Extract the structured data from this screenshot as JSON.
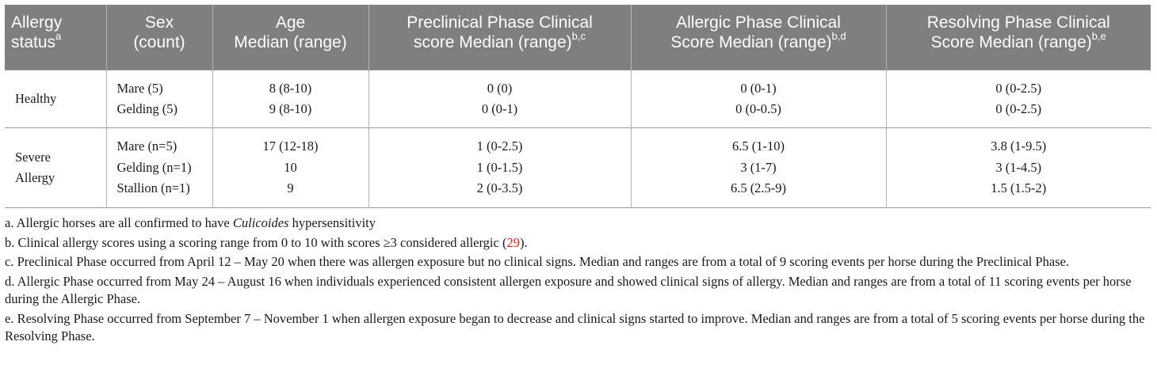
{
  "table": {
    "headers": [
      {
        "text": "Allergy status",
        "sup": "a"
      },
      {
        "text": "Sex (count)",
        "sup": ""
      },
      {
        "text": "Age Median (range)",
        "sup": ""
      },
      {
        "text": "Preclinical Phase Clinical score Median (range)",
        "sup": "b,c"
      },
      {
        "text": "Allergic Phase Clinical Score Median (range)",
        "sup": "b,d"
      },
      {
        "text": "Resolving Phase Clinical Score Median (range)",
        "sup": "b,e"
      }
    ],
    "header_lines": [
      [
        "Allergy",
        "status"
      ],
      [
        "Sex",
        "(count)"
      ],
      [
        "Age",
        "Median (range)"
      ],
      [
        "Preclinical Phase Clinical",
        "score Median (range)"
      ],
      [
        "Allergic Phase Clinical",
        "Score Median (range)"
      ],
      [
        "Resolving Phase Clinical",
        "Score Median (range)"
      ]
    ],
    "groups": [
      {
        "status_lines": [
          "Healthy"
        ],
        "rows": [
          {
            "sex": "Mare (5)",
            "age": "8 (8-10)",
            "preclinical": "0 (0)",
            "allergic": "0 (0-1)",
            "resolving": "0 (0-2.5)"
          },
          {
            "sex": "Gelding (5)",
            "age": "9 (8-10)",
            "preclinical": "0 (0-1)",
            "allergic": "0 (0-0.5)",
            "resolving": "0 (0-2.5)"
          }
        ]
      },
      {
        "status_lines": [
          "Severe",
          "Allergy"
        ],
        "rows": [
          {
            "sex": "Mare (n=5)",
            "age": "17 (12-18)",
            "preclinical": "1 (0-2.5)",
            "allergic": "6.5 (1-10)",
            "resolving": "3.8 (1-9.5)"
          },
          {
            "sex": "Gelding (n=1)",
            "age": "10",
            "preclinical": "1 (0-1.5)",
            "allergic": "3 (1-7)",
            "resolving": "3 (1-4.5)"
          },
          {
            "sex": "Stallion (n=1)",
            "age": "9",
            "preclinical": "2 (0-3.5)",
            "allergic": "6.5 (2.5-9)",
            "resolving": "1.5 (1.5-2)"
          }
        ]
      }
    ]
  },
  "footnotes": {
    "a": {
      "prefix": "a. Allergic horses are all confirmed to have ",
      "italic": "Culicoides",
      "suffix": " hypersensitivity"
    },
    "b": {
      "prefix": "b. Clinical allergy scores using a scoring range from 0 to 10 with scores ≥3 considered allergic (",
      "ref": "29",
      "suffix": ")."
    },
    "c": "c. Preclinical Phase occurred from April 12 – May 20 when there was allergen exposure but no clinical signs. Median and ranges are from a total of 9 scoring events per horse during the Preclinical Phase.",
    "d": "d. Allergic Phase occurred from May 24 – August 16 when individuals experienced consistent allergen exposure and showed clinical signs of allergy. Median and ranges are from a total of 11 scoring events per horse during the Allergic Phase.",
    "e": "e. Resolving Phase occurred from September 7 – November 1 when allergen exposure began to decrease and clinical signs started to improve. Median and ranges are from a total of 5 scoring events per horse during the Resolving Phase."
  },
  "colors": {
    "header_bg": "#7f7f7f",
    "header_text": "#ffffff",
    "rule": "#9a9a9a",
    "ref_link": "#c8281e"
  }
}
